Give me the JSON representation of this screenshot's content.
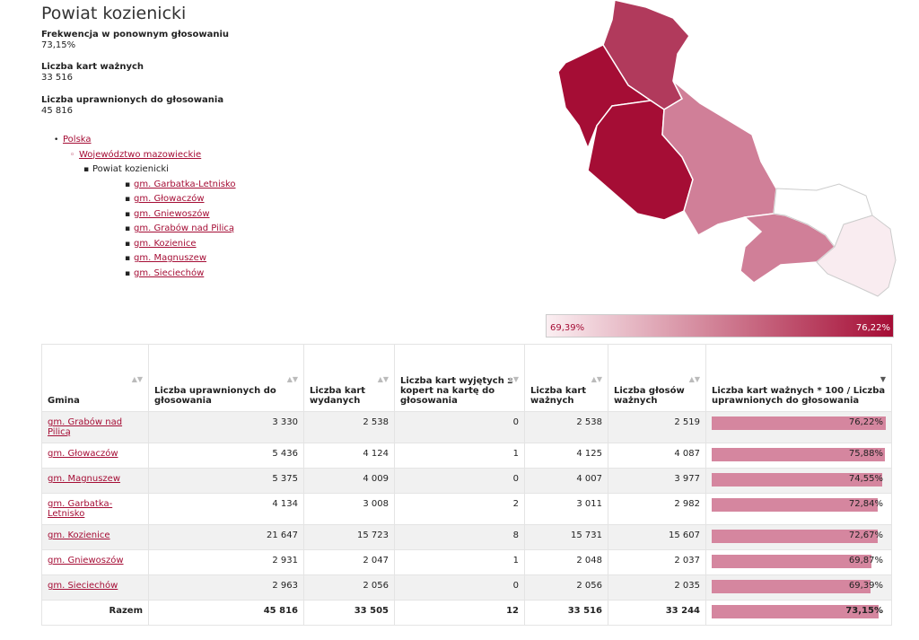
{
  "title": "Powiat kozienicki",
  "stats": [
    {
      "label": "Frekwencja w ponownym głosowaniu",
      "value": "73,15%"
    },
    {
      "label": "Liczba kart ważnych",
      "value": "33 516"
    },
    {
      "label": "Liczba uprawnionych do głosowania",
      "value": "45 816"
    }
  ],
  "breadcrumb": {
    "country": "Polska",
    "voivodeship": "Województwo mazowieckie",
    "county": "Powiat kozienicki",
    "gminas": [
      "gm. Garbatka-Letnisko",
      "gm. Głowaczów",
      "gm. Gniewoszów",
      "gm. Grabów nad Pilicą",
      "gm. Kozienice",
      "gm. Magnuszew",
      "gm. Sieciechów"
    ]
  },
  "legend": {
    "min": "69,39%",
    "max": "76,22%",
    "color_low": "#fbeff2",
    "color_high": "#a50d35"
  },
  "table": {
    "headers": [
      "Gmina",
      "Liczba uprawnionych do głosowania",
      "Liczba kart wydanych",
      "Liczba kart wyjętych z kopert na kartę do głosowania",
      "Liczba kart ważnych",
      "Liczba głosów ważnych",
      "Liczba kart ważnych * 100 / Liczba uprawnionych do głosowania"
    ],
    "rows": [
      {
        "gmina": "gm. Grabów nad Pilicą",
        "uprawnieni": "3 330",
        "wydane": "2 538",
        "wyjete": "0",
        "wazne": "2 538",
        "glosy": "2 519",
        "pct": "76,22%",
        "pct_value": 76.22
      },
      {
        "gmina": "gm. Głowaczów",
        "uprawnieni": "5 436",
        "wydane": "4 124",
        "wyjete": "1",
        "wazne": "4 125",
        "glosy": "4 087",
        "pct": "75,88%",
        "pct_value": 75.88
      },
      {
        "gmina": "gm. Magnuszew",
        "uprawnieni": "5 375",
        "wydane": "4 009",
        "wyjete": "0",
        "wazne": "4 007",
        "glosy": "3 977",
        "pct": "74,55%",
        "pct_value": 74.55
      },
      {
        "gmina": "gm. Garbatka-Letnisko",
        "uprawnieni": "4 134",
        "wydane": "3 008",
        "wyjete": "2",
        "wazne": "3 011",
        "glosy": "2 982",
        "pct": "72,84%",
        "pct_value": 72.84
      },
      {
        "gmina": "gm. Kozienice",
        "uprawnieni": "21 647",
        "wydane": "15 723",
        "wyjete": "8",
        "wazne": "15 731",
        "glosy": "15 607",
        "pct": "72,67%",
        "pct_value": 72.67
      },
      {
        "gmina": "gm. Gniewoszów",
        "uprawnieni": "2 931",
        "wydane": "2 047",
        "wyjete": "1",
        "wazne": "2 048",
        "glosy": "2 037",
        "pct": "69,87%",
        "pct_value": 69.87
      },
      {
        "gmina": "gm. Sieciechów",
        "uprawnieni": "2 963",
        "wydane": "2 056",
        "wyjete": "0",
        "wazne": "2 056",
        "glosy": "2 035",
        "pct": "69,39%",
        "pct_value": 69.39
      }
    ],
    "total": {
      "label": "Razem",
      "uprawnieni": "45 816",
      "wydane": "33 505",
      "wyjete": "12",
      "wazne": "33 516",
      "glosy": "33 244",
      "pct": "73,15%",
      "pct_value": 73.15
    }
  },
  "bar_color": "#d5869f"
}
